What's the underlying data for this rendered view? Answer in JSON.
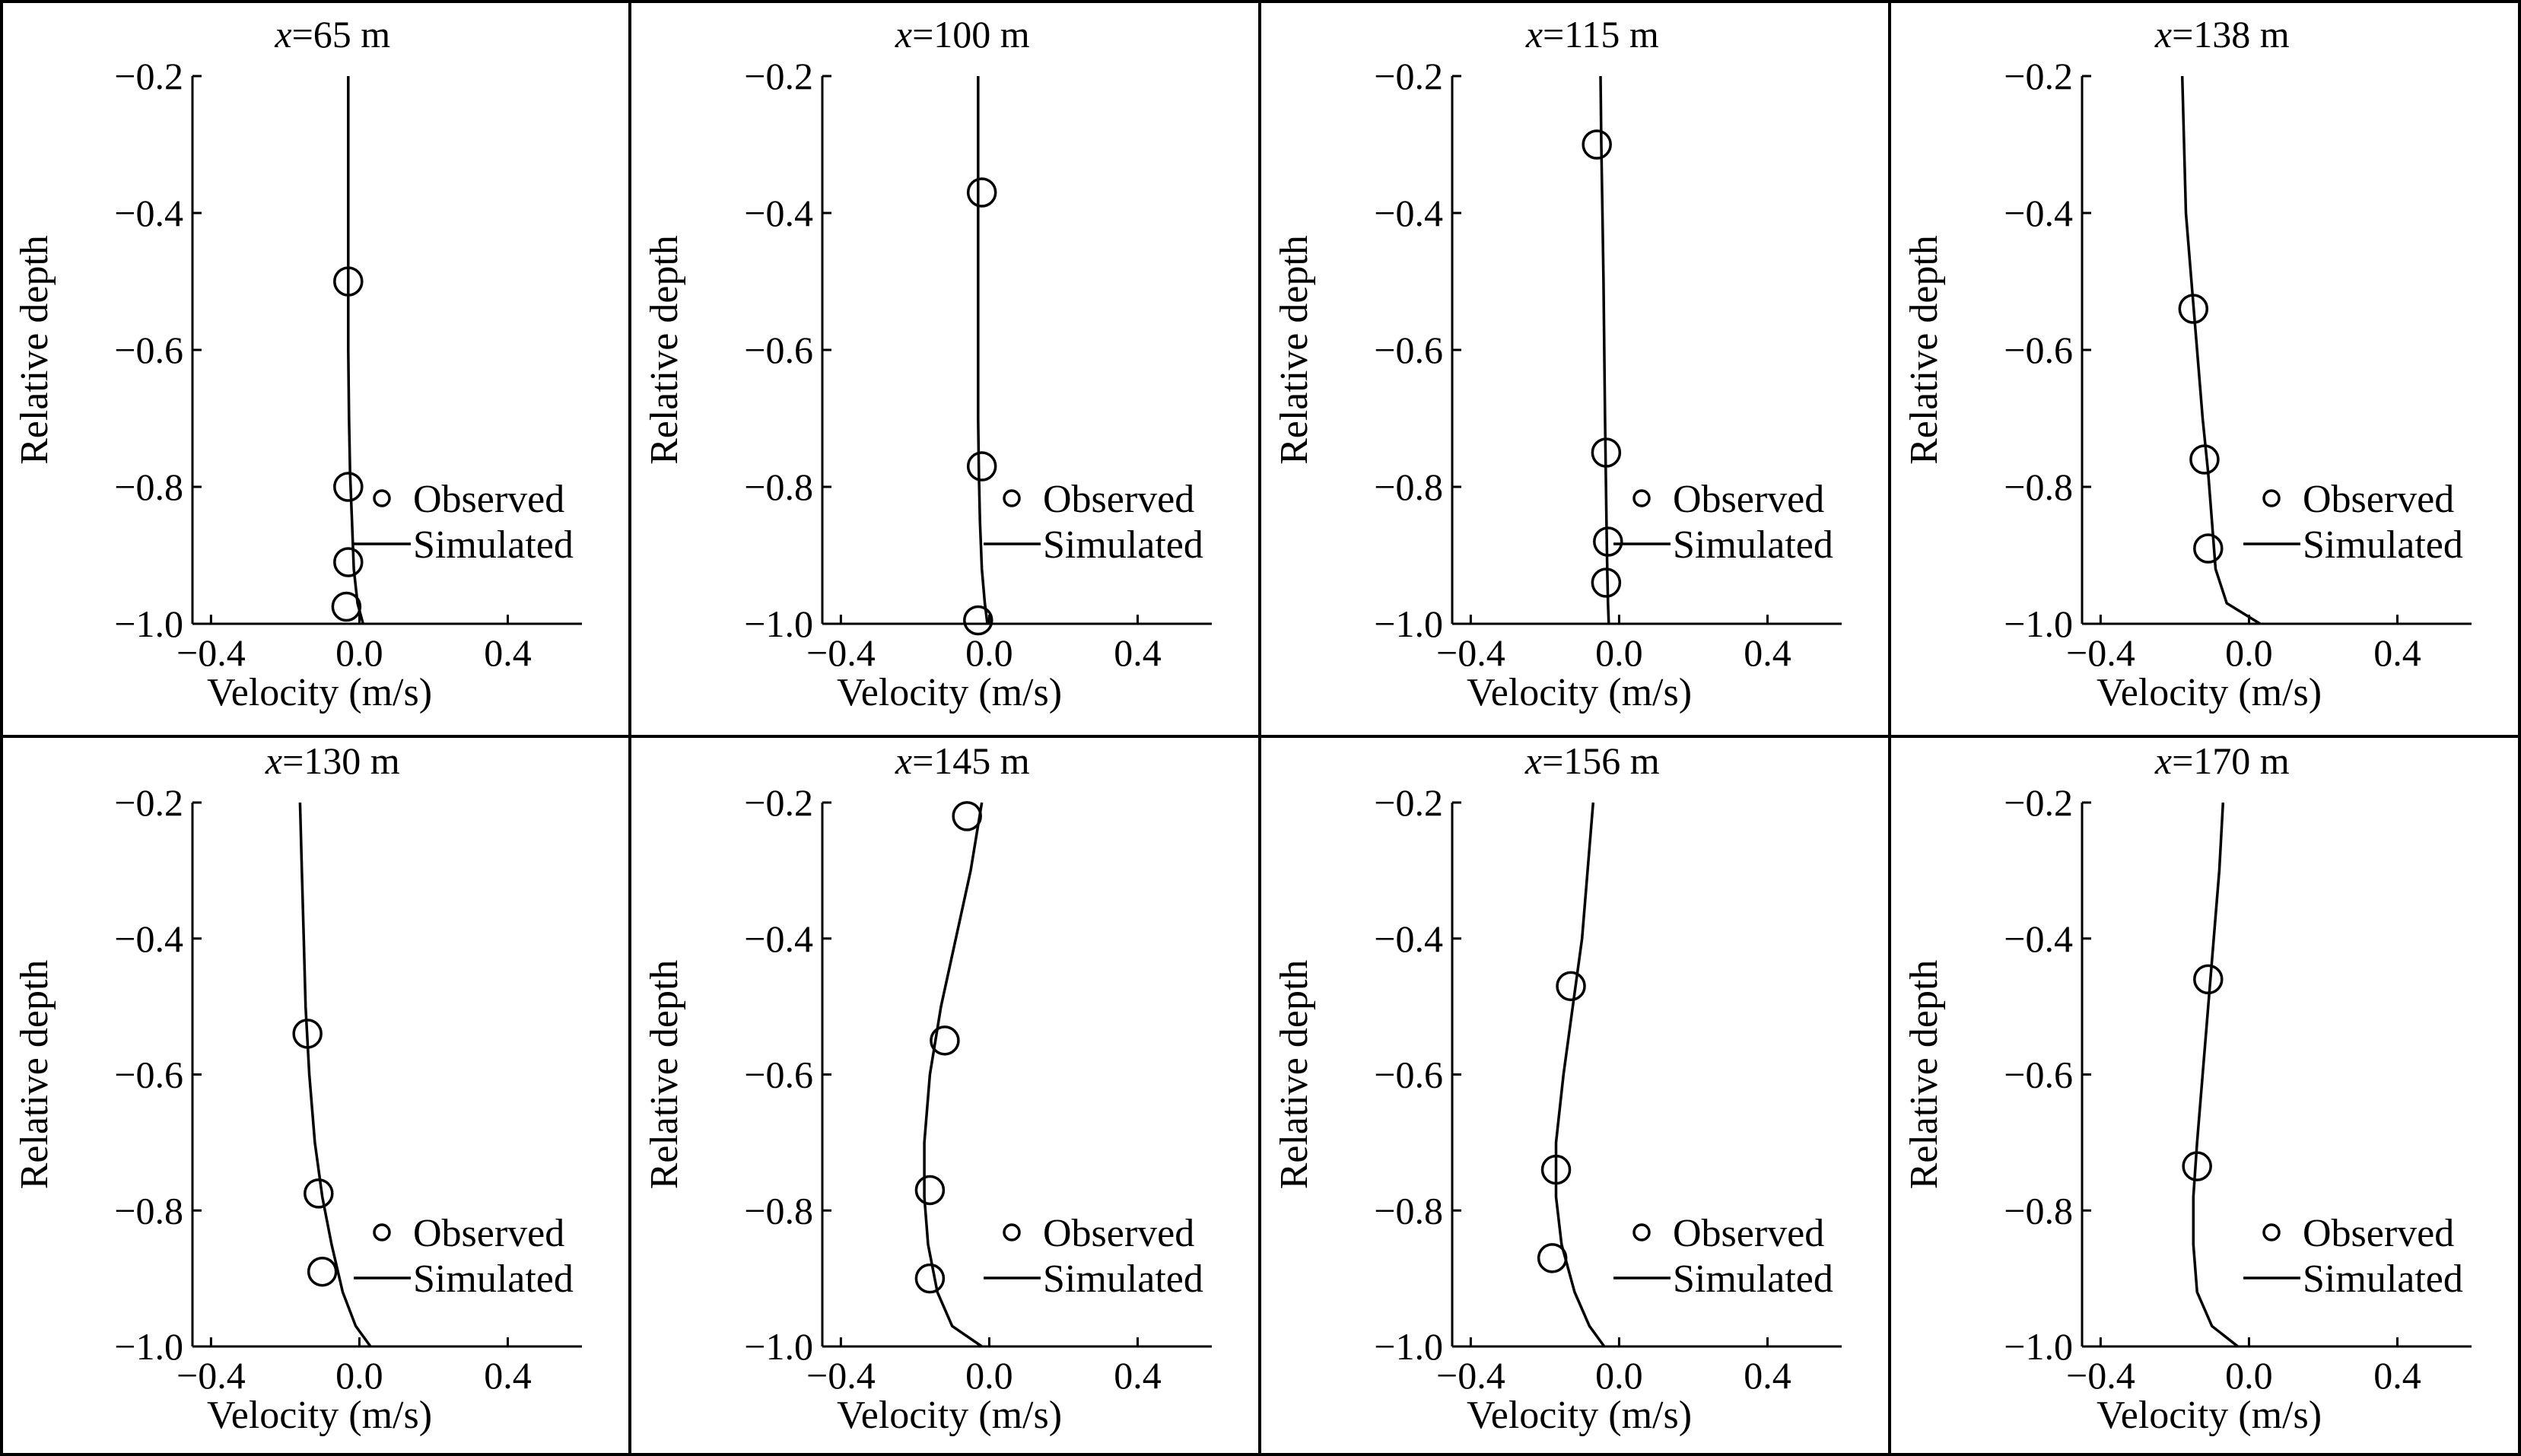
{
  "figure": {
    "legend": {
      "observed": "Observed",
      "simulated": "Simulated"
    }
  },
  "chart_data": [
    {
      "type": "line",
      "title_var": "x",
      "title_value": "=65 m",
      "xlabel": "Velocity (m/s)",
      "ylabel": "Relative depth",
      "xlim": [
        -0.45,
        0.6
      ],
      "ylim": [
        -1.0,
        -0.2
      ],
      "xticks": [
        -0.4,
        0.0,
        0.4
      ],
      "xtick_labels": [
        "−0.4",
        "0.0",
        "0.4"
      ],
      "yticks": [
        -0.2,
        -0.4,
        -0.6,
        -0.8,
        -1.0
      ],
      "ytick_labels": [
        "−0.2",
        "−0.4",
        "−0.6",
        "−0.8",
        "−1.0"
      ],
      "series": [
        {
          "name": "Simulated",
          "style": "line",
          "x": [
            -0.03,
            -0.03,
            -0.03,
            -0.03,
            -0.03,
            -0.028,
            -0.025,
            -0.02,
            -0.015,
            -0.005,
            0.01
          ],
          "y": [
            -0.2,
            -0.3,
            -0.4,
            -0.5,
            -0.6,
            -0.7,
            -0.78,
            -0.85,
            -0.92,
            -0.97,
            -1.0
          ]
        },
        {
          "name": "Observed",
          "style": "marker",
          "x": [
            -0.03,
            -0.03,
            -0.03,
            -0.035
          ],
          "y": [
            -0.5,
            -0.8,
            -0.91,
            -0.975
          ]
        }
      ]
    },
    {
      "type": "line",
      "title_var": "x",
      "title_value": "=100 m",
      "xlabel": "Velocity (m/s)",
      "ylabel": "Relative depth",
      "xlim": [
        -0.45,
        0.6
      ],
      "ylim": [
        -1.0,
        -0.2
      ],
      "xticks": [
        -0.4,
        0.0,
        0.4
      ],
      "xtick_labels": [
        "−0.4",
        "0.0",
        "0.4"
      ],
      "yticks": [
        -0.2,
        -0.4,
        -0.6,
        -0.8,
        -1.0
      ],
      "ytick_labels": [
        "−0.2",
        "−0.4",
        "−0.6",
        "−0.8",
        "−1.0"
      ],
      "series": [
        {
          "name": "Simulated",
          "style": "line",
          "x": [
            -0.03,
            -0.03,
            -0.03,
            -0.03,
            -0.03,
            -0.03,
            -0.028,
            -0.025,
            -0.02,
            -0.012,
            -0.005
          ],
          "y": [
            -0.2,
            -0.3,
            -0.4,
            -0.5,
            -0.6,
            -0.7,
            -0.78,
            -0.85,
            -0.92,
            -0.97,
            -1.0
          ]
        },
        {
          "name": "Observed",
          "style": "marker",
          "x": [
            -0.02,
            -0.02,
            -0.03
          ],
          "y": [
            -0.37,
            -0.77,
            -0.995
          ]
        }
      ]
    },
    {
      "type": "line",
      "title_var": "x",
      "title_value": "=115 m",
      "xlabel": "Velocity (m/s)",
      "ylabel": "Relative depth",
      "xlim": [
        -0.45,
        0.6
      ],
      "ylim": [
        -1.0,
        -0.2
      ],
      "xticks": [
        -0.4,
        0.0,
        0.4
      ],
      "xtick_labels": [
        "−0.4",
        "0.0",
        "0.4"
      ],
      "yticks": [
        -0.2,
        -0.4,
        -0.6,
        -0.8,
        -1.0
      ],
      "ytick_labels": [
        "−0.2",
        "−0.4",
        "−0.6",
        "−0.8",
        "−1.0"
      ],
      "series": [
        {
          "name": "Simulated",
          "style": "line",
          "x": [
            -0.05,
            -0.048,
            -0.045,
            -0.042,
            -0.04,
            -0.038,
            -0.036,
            -0.034,
            -0.032,
            -0.03,
            -0.028
          ],
          "y": [
            -0.2,
            -0.3,
            -0.4,
            -0.5,
            -0.6,
            -0.7,
            -0.78,
            -0.85,
            -0.92,
            -0.97,
            -1.0
          ]
        },
        {
          "name": "Observed",
          "style": "marker",
          "x": [
            -0.06,
            -0.035,
            -0.03,
            -0.035
          ],
          "y": [
            -0.3,
            -0.75,
            -0.88,
            -0.94
          ]
        }
      ]
    },
    {
      "type": "line",
      "title_var": "x",
      "title_value": "=138 m",
      "xlabel": "Velocity (m/s)",
      "ylabel": "Relative depth",
      "xlim": [
        -0.45,
        0.6
      ],
      "ylim": [
        -1.0,
        -0.2
      ],
      "xticks": [
        -0.4,
        0.0,
        0.4
      ],
      "xtick_labels": [
        "−0.4",
        "0.0",
        "0.4"
      ],
      "yticks": [
        -0.2,
        -0.4,
        -0.6,
        -0.8,
        -1.0
      ],
      "ytick_labels": [
        "−0.2",
        "−0.4",
        "−0.6",
        "−0.8",
        "−1.0"
      ],
      "series": [
        {
          "name": "Simulated",
          "style": "line",
          "x": [
            -0.18,
            -0.175,
            -0.17,
            -0.155,
            -0.14,
            -0.125,
            -0.11,
            -0.1,
            -0.09,
            -0.06,
            0.03
          ],
          "y": [
            -0.2,
            -0.3,
            -0.4,
            -0.5,
            -0.6,
            -0.7,
            -0.78,
            -0.85,
            -0.92,
            -0.97,
            -1.0
          ]
        },
        {
          "name": "Observed",
          "style": "marker",
          "x": [
            -0.15,
            -0.12,
            -0.11
          ],
          "y": [
            -0.54,
            -0.76,
            -0.89
          ]
        }
      ]
    },
    {
      "type": "line",
      "title_var": "x",
      "title_value": "=130 m",
      "xlabel": "Velocity (m/s)",
      "ylabel": "Relative depth",
      "xlim": [
        -0.45,
        0.6
      ],
      "ylim": [
        -1.0,
        -0.2
      ],
      "xticks": [
        -0.4,
        0.0,
        0.4
      ],
      "xtick_labels": [
        "−0.4",
        "0.0",
        "0.4"
      ],
      "yticks": [
        -0.2,
        -0.4,
        -0.6,
        -0.8,
        -1.0
      ],
      "ytick_labels": [
        "−0.2",
        "−0.4",
        "−0.6",
        "−0.8",
        "−1.0"
      ],
      "series": [
        {
          "name": "Simulated",
          "style": "line",
          "x": [
            -0.16,
            -0.155,
            -0.15,
            -0.145,
            -0.135,
            -0.12,
            -0.1,
            -0.075,
            -0.045,
            -0.01,
            0.03
          ],
          "y": [
            -0.2,
            -0.3,
            -0.4,
            -0.5,
            -0.6,
            -0.7,
            -0.78,
            -0.85,
            -0.92,
            -0.97,
            -1.0
          ]
        },
        {
          "name": "Observed",
          "style": "marker",
          "x": [
            -0.14,
            -0.11,
            -0.1
          ],
          "y": [
            -0.54,
            -0.775,
            -0.89
          ]
        }
      ]
    },
    {
      "type": "line",
      "title_var": "x",
      "title_value": "=145 m",
      "xlabel": "Velocity (m/s)",
      "ylabel": "Relative depth",
      "xlim": [
        -0.45,
        0.6
      ],
      "ylim": [
        -1.0,
        -0.2
      ],
      "xticks": [
        -0.4,
        0.0,
        0.4
      ],
      "xtick_labels": [
        "−0.4",
        "0.0",
        "0.4"
      ],
      "yticks": [
        -0.2,
        -0.4,
        -0.6,
        -0.8,
        -1.0
      ],
      "ytick_labels": [
        "−0.2",
        "−0.4",
        "−0.6",
        "−0.8",
        "−1.0"
      ],
      "series": [
        {
          "name": "Simulated",
          "style": "line",
          "x": [
            -0.02,
            -0.05,
            -0.09,
            -0.13,
            -0.16,
            -0.175,
            -0.175,
            -0.165,
            -0.14,
            -0.1,
            -0.02
          ],
          "y": [
            -0.2,
            -0.3,
            -0.4,
            -0.5,
            -0.6,
            -0.7,
            -0.78,
            -0.85,
            -0.92,
            -0.97,
            -1.0
          ]
        },
        {
          "name": "Observed",
          "style": "marker",
          "x": [
            -0.06,
            -0.12,
            -0.16,
            -0.16
          ],
          "y": [
            -0.22,
            -0.55,
            -0.77,
            -0.9
          ]
        }
      ]
    },
    {
      "type": "line",
      "title_var": "x",
      "title_value": "=156 m",
      "xlabel": "Velocity (m/s)",
      "ylabel": "Relative depth",
      "xlim": [
        -0.45,
        0.6
      ],
      "ylim": [
        -1.0,
        -0.2
      ],
      "xticks": [
        -0.4,
        0.0,
        0.4
      ],
      "xtick_labels": [
        "−0.4",
        "0.0",
        "0.4"
      ],
      "yticks": [
        -0.2,
        -0.4,
        -0.6,
        -0.8,
        -1.0
      ],
      "ytick_labels": [
        "−0.2",
        "−0.4",
        "−0.6",
        "−0.8",
        "−1.0"
      ],
      "series": [
        {
          "name": "Simulated",
          "style": "line",
          "x": [
            -0.07,
            -0.085,
            -0.1,
            -0.125,
            -0.15,
            -0.17,
            -0.17,
            -0.155,
            -0.12,
            -0.08,
            -0.04
          ],
          "y": [
            -0.2,
            -0.3,
            -0.4,
            -0.5,
            -0.6,
            -0.7,
            -0.78,
            -0.85,
            -0.92,
            -0.97,
            -1.0
          ]
        },
        {
          "name": "Observed",
          "style": "marker",
          "x": [
            -0.13,
            -0.17,
            -0.18
          ],
          "y": [
            -0.47,
            -0.74,
            -0.87
          ]
        }
      ]
    },
    {
      "type": "line",
      "title_var": "x",
      "title_value": "=170 m",
      "xlabel": "Velocity (m/s)",
      "ylabel": "Relative depth",
      "xlim": [
        -0.45,
        0.6
      ],
      "ylim": [
        -1.0,
        -0.2
      ],
      "xticks": [
        -0.4,
        0.0,
        0.4
      ],
      "xtick_labels": [
        "−0.4",
        "0.0",
        "0.4"
      ],
      "yticks": [
        -0.2,
        -0.4,
        -0.6,
        -0.8,
        -1.0
      ],
      "ytick_labels": [
        "−0.2",
        "−0.4",
        "−0.6",
        "−0.8",
        "−1.0"
      ],
      "series": [
        {
          "name": "Simulated",
          "style": "line",
          "x": [
            -0.07,
            -0.08,
            -0.095,
            -0.11,
            -0.125,
            -0.14,
            -0.15,
            -0.15,
            -0.14,
            -0.1,
            -0.03
          ],
          "y": [
            -0.2,
            -0.3,
            -0.4,
            -0.5,
            -0.6,
            -0.7,
            -0.78,
            -0.85,
            -0.92,
            -0.97,
            -1.0
          ]
        },
        {
          "name": "Observed",
          "style": "marker",
          "x": [
            -0.11,
            -0.14
          ],
          "y": [
            -0.46,
            -0.735
          ]
        }
      ]
    }
  ]
}
